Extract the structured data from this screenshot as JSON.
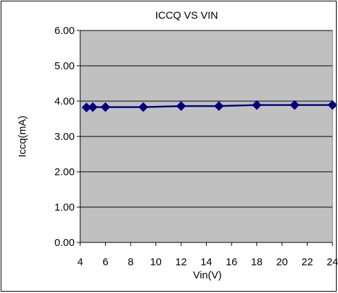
{
  "chart_data": {
    "type": "line",
    "title": "ICCQ VS VIN",
    "xlabel": "Vin(V)",
    "ylabel": "Iccq(mA)",
    "xlim": [
      4,
      24
    ],
    "ylim": [
      0,
      6
    ],
    "x_ticks": [
      4,
      6,
      8,
      10,
      12,
      14,
      16,
      18,
      20,
      22,
      24
    ],
    "y_ticks": [
      "0.00",
      "1.00",
      "2.00",
      "3.00",
      "4.00",
      "5.00",
      "6.00"
    ],
    "grid": true,
    "legend": "none",
    "series": [
      {
        "x": [
          4.5,
          5,
          6,
          9,
          12,
          15,
          18,
          21,
          24
        ],
        "y": [
          3.82,
          3.83,
          3.83,
          3.83,
          3.86,
          3.86,
          3.89,
          3.89,
          3.89
        ],
        "color": "#000080",
        "marker": "diamond"
      }
    ],
    "plot_background": "#c0c0c0"
  }
}
